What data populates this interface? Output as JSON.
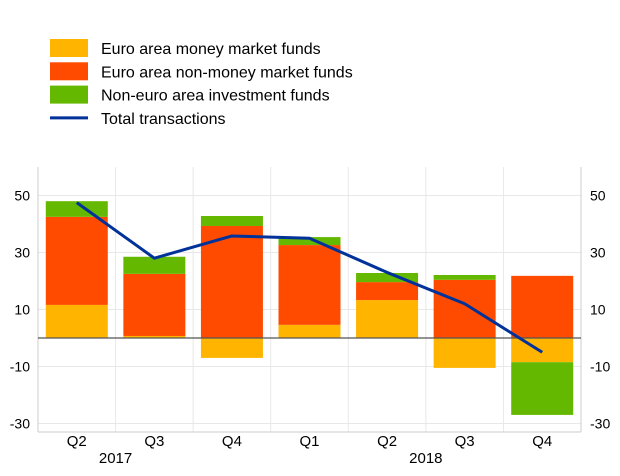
{
  "colors": {
    "money": "#FFB400",
    "nonmoney": "#FF4B00",
    "noneuro": "#65B800",
    "total": "#003299",
    "grid": "#e8e8e8",
    "zero": "#555555"
  },
  "chart_data": {
    "type": "bar",
    "stacked": true,
    "title": "",
    "xlabel": "",
    "ylabel": "",
    "ylim": [
      -33,
      60
    ],
    "yticks": [
      50,
      30,
      10,
      -10,
      -30
    ],
    "grid": true,
    "legend_position": "top-left",
    "categories": [
      "Q2",
      "Q3",
      "Q4",
      "Q1",
      "Q2",
      "Q3",
      "Q4"
    ],
    "year_labels": [
      {
        "label": "2017",
        "index": 0.5
      },
      {
        "label": "2018",
        "index": 4.5
      }
    ],
    "series": [
      {
        "name": "Euro area money market funds",
        "kind": "bar",
        "color": "#FFB400",
        "values": [
          11.6,
          0.7,
          -7.0,
          4.6,
          13.3,
          -10.5,
          -8.5
        ]
      },
      {
        "name": "Euro area non-money market funds",
        "kind": "bar",
        "color": "#FF4B00",
        "values": [
          30.9,
          21.8,
          39.3,
          28.0,
          6.3,
          20.4,
          21.8
        ]
      },
      {
        "name": "Non-euro area investment funds",
        "kind": "bar",
        "color": "#65B800",
        "values": [
          5.5,
          6.0,
          3.5,
          2.8,
          3.2,
          1.7,
          -18.5
        ]
      },
      {
        "name": "Total transactions",
        "kind": "line",
        "color": "#003299",
        "values": [
          47.5,
          28.0,
          35.8,
          35.0,
          23.0,
          12.0,
          -5.0
        ]
      }
    ]
  }
}
